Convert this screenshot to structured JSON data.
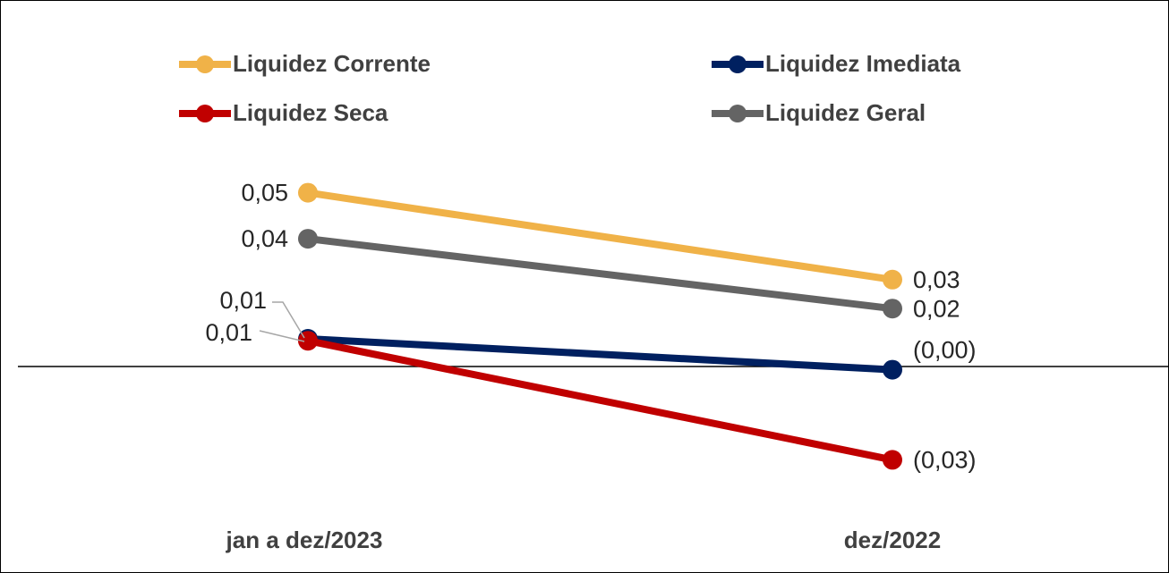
{
  "chart_data": {
    "type": "line",
    "categories": [
      "jan a dez/2023",
      "dez/2022"
    ],
    "series": [
      {
        "name": "Liquidez Corrente",
        "color": "#f0b248",
        "values": [
          0.054,
          0.027
        ],
        "value_labels": [
          "0,05",
          "0,03"
        ]
      },
      {
        "name": "Liquidez Imediata",
        "color": "#002060",
        "values": [
          0.0086,
          -0.001
        ],
        "value_labels": [
          "0,01",
          "(0,00)"
        ]
      },
      {
        "name": "Liquidez Seca",
        "color": "#c00000",
        "values": [
          0.008,
          -0.029
        ],
        "value_labels": [
          "0,01",
          "(0,03)"
        ]
      },
      {
        "name": "Liquidez Geral",
        "color": "#646464",
        "values": [
          0.0397,
          0.018
        ],
        "value_labels": [
          "0,04",
          "0,02"
        ]
      }
    ],
    "ylim": [
      -0.05,
      0.1
    ],
    "legend": "top"
  }
}
